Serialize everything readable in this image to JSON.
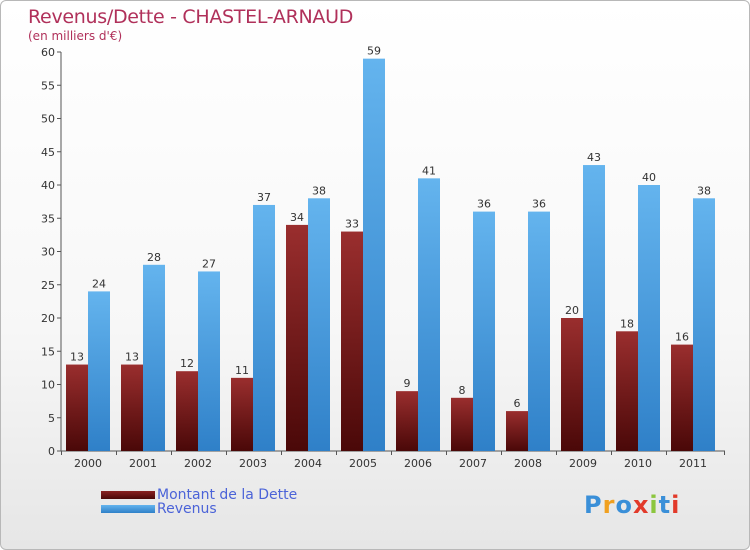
{
  "chart_data": {
    "type": "bar",
    "title": "Revenus/Dette - CHASTEL-ARNAUD",
    "subtitle": "(en milliers d'€)",
    "categories": [
      "2000",
      "2001",
      "2002",
      "2003",
      "2004",
      "2005",
      "2006",
      "2007",
      "2008",
      "2009",
      "2010",
      "2011"
    ],
    "series": [
      {
        "name": "Montant de la Dette",
        "color": "#7a1a1a",
        "values": [
          13,
          13,
          12,
          11,
          34,
          33,
          9,
          8,
          6,
          20,
          18,
          16
        ]
      },
      {
        "name": "Revenus",
        "color": "#4a9fe0",
        "values": [
          24,
          28,
          27,
          37,
          38,
          59,
          41,
          36,
          36,
          43,
          40,
          38
        ]
      }
    ],
    "ylim": [
      0,
      60
    ],
    "yticks": [
      0,
      5,
      10,
      15,
      20,
      25,
      30,
      35,
      40,
      45,
      50,
      55,
      60
    ],
    "grid": false,
    "legend_position": "bottom-left"
  },
  "legend": {
    "items": [
      {
        "label": "Montant de la Dette",
        "color": "#7a1a1a"
      },
      {
        "label": "Revenus",
        "color": "#4a9fe0"
      }
    ]
  },
  "logo": {
    "text": "Proxiti"
  }
}
